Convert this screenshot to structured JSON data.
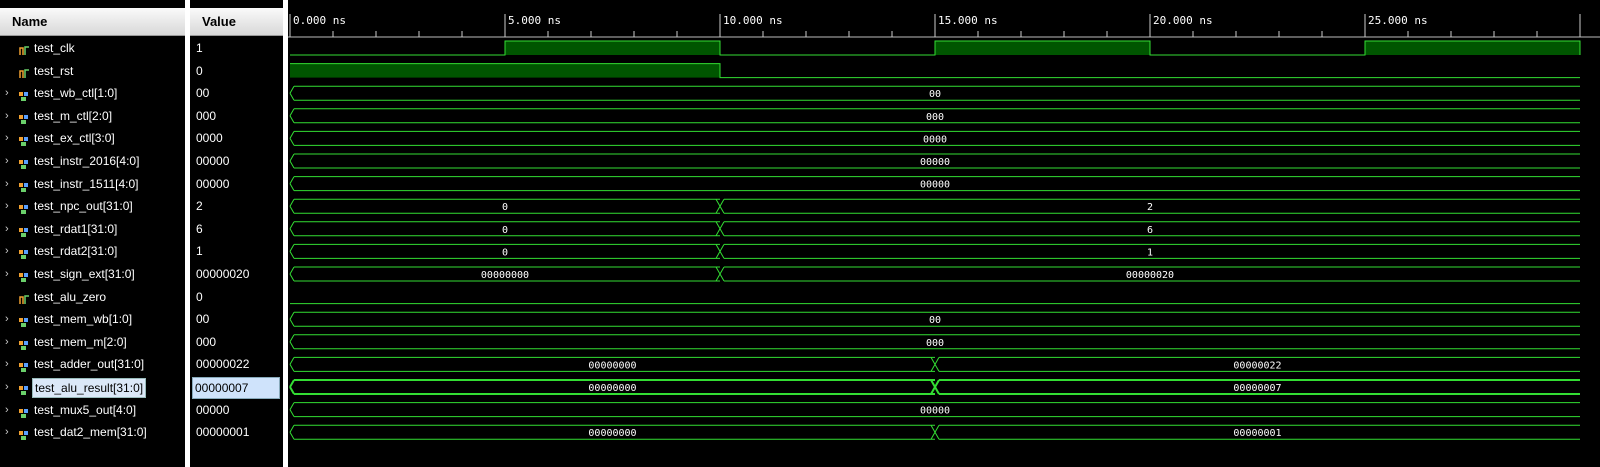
{
  "headers": {
    "name": "Name",
    "value": "Value"
  },
  "timeline": {
    "ticks": [
      "0.000 ns",
      "5.000 ns",
      "10.000 ns",
      "15.000 ns",
      "20.000 ns",
      "25.000 ns"
    ]
  },
  "colors": {
    "wave": "#33dd33",
    "fill": "#005500",
    "bg": "#000000"
  },
  "signals": [
    {
      "name": "test_clk",
      "value": "1",
      "type": "bit",
      "expandable": false
    },
    {
      "name": "test_rst",
      "value": "0",
      "type": "bit",
      "expandable": false
    },
    {
      "name": "test_wb_ctl[1:0]",
      "value": "00",
      "type": "bus",
      "expandable": true
    },
    {
      "name": "test_m_ctl[2:0]",
      "value": "000",
      "type": "bus",
      "expandable": true
    },
    {
      "name": "test_ex_ctl[3:0]",
      "value": "0000",
      "type": "bus",
      "expandable": true
    },
    {
      "name": "test_instr_2016[4:0]",
      "value": "00000",
      "type": "bus",
      "expandable": true
    },
    {
      "name": "test_instr_1511[4:0]",
      "value": "00000",
      "type": "bus",
      "expandable": true
    },
    {
      "name": "test_npc_out[31:0]",
      "value": "2",
      "type": "bus",
      "expandable": true
    },
    {
      "name": "test_rdat1[31:0]",
      "value": "6",
      "type": "bus",
      "expandable": true
    },
    {
      "name": "test_rdat2[31:0]",
      "value": "1",
      "type": "bus",
      "expandable": true
    },
    {
      "name": "test_sign_ext[31:0]",
      "value": "00000020",
      "type": "bus",
      "expandable": true
    },
    {
      "name": "test_alu_zero",
      "value": "0",
      "type": "bit",
      "expandable": false
    },
    {
      "name": "test_mem_wb[1:0]",
      "value": "00",
      "type": "bus",
      "expandable": true
    },
    {
      "name": "test_mem_m[2:0]",
      "value": "000",
      "type": "bus",
      "expandable": true
    },
    {
      "name": "test_adder_out[31:0]",
      "value": "00000022",
      "type": "bus",
      "expandable": true
    },
    {
      "name": "test_alu_result[31:0]",
      "value": "00000007",
      "type": "bus",
      "expandable": true,
      "selected": true
    },
    {
      "name": "test_mux5_out[4:0]",
      "value": "00000",
      "type": "bus",
      "expandable": true
    },
    {
      "name": "test_dat2_mem[31:0]",
      "value": "00000001",
      "type": "bus",
      "expandable": true
    }
  ],
  "waves": [
    {
      "kind": "clock",
      "period_ns": 10,
      "high_first_ns": 5,
      "end_ns": 30
    },
    {
      "kind": "bit",
      "segments": [
        {
          "start_ns": 0,
          "end_ns": 10,
          "level": 1
        },
        {
          "start_ns": 10,
          "end_ns": 30,
          "level": 0
        }
      ]
    },
    {
      "kind": "bus",
      "segments": [
        {
          "start_ns": 0,
          "end_ns": 30,
          "label": "00"
        }
      ]
    },
    {
      "kind": "bus",
      "segments": [
        {
          "start_ns": 0,
          "end_ns": 30,
          "label": "000"
        }
      ]
    },
    {
      "kind": "bus",
      "segments": [
        {
          "start_ns": 0,
          "end_ns": 30,
          "label": "0000"
        }
      ]
    },
    {
      "kind": "bus",
      "segments": [
        {
          "start_ns": 0,
          "end_ns": 30,
          "label": "00000"
        }
      ]
    },
    {
      "kind": "bus",
      "segments": [
        {
          "start_ns": 0,
          "end_ns": 30,
          "label": "00000"
        }
      ]
    },
    {
      "kind": "bus",
      "segments": [
        {
          "start_ns": 0,
          "end_ns": 10,
          "label": "0"
        },
        {
          "start_ns": 10,
          "end_ns": 30,
          "label": "2"
        }
      ]
    },
    {
      "kind": "bus",
      "segments": [
        {
          "start_ns": 0,
          "end_ns": 10,
          "label": "0"
        },
        {
          "start_ns": 10,
          "end_ns": 30,
          "label": "6"
        }
      ]
    },
    {
      "kind": "bus",
      "segments": [
        {
          "start_ns": 0,
          "end_ns": 10,
          "label": "0"
        },
        {
          "start_ns": 10,
          "end_ns": 30,
          "label": "1"
        }
      ]
    },
    {
      "kind": "bus",
      "segments": [
        {
          "start_ns": 0,
          "end_ns": 10,
          "label": "00000000"
        },
        {
          "start_ns": 10,
          "end_ns": 30,
          "label": "00000020"
        }
      ]
    },
    {
      "kind": "bit",
      "segments": [
        {
          "start_ns": 0,
          "end_ns": 30,
          "level": 0
        }
      ]
    },
    {
      "kind": "bus",
      "segments": [
        {
          "start_ns": 0,
          "end_ns": 30,
          "label": "00"
        }
      ]
    },
    {
      "kind": "bus",
      "segments": [
        {
          "start_ns": 0,
          "end_ns": 30,
          "label": "000"
        }
      ]
    },
    {
      "kind": "bus",
      "segments": [
        {
          "start_ns": 0,
          "end_ns": 15,
          "label": "00000000"
        },
        {
          "start_ns": 15,
          "end_ns": 30,
          "label": "00000022"
        }
      ]
    },
    {
      "kind": "bus",
      "bold": true,
      "segments": [
        {
          "start_ns": 0,
          "end_ns": 15,
          "label": "00000000"
        },
        {
          "start_ns": 15,
          "end_ns": 30,
          "label": "00000007"
        }
      ]
    },
    {
      "kind": "bus",
      "segments": [
        {
          "start_ns": 0,
          "end_ns": 30,
          "label": "00000"
        }
      ]
    },
    {
      "kind": "bus",
      "segments": [
        {
          "start_ns": 0,
          "end_ns": 15,
          "label": "00000000"
        },
        {
          "start_ns": 15,
          "end_ns": 30,
          "label": "00000001"
        }
      ]
    }
  ]
}
